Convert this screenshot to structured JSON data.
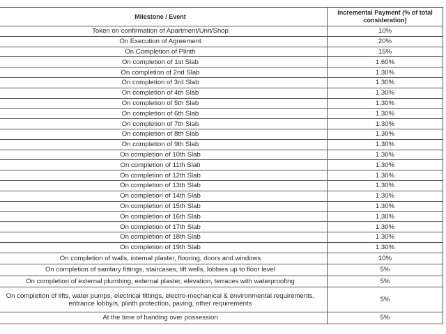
{
  "headers": {
    "milestone": "Milestone / Event",
    "payment_line1": "Incremental Payment (% of total",
    "payment_line2": "consideration)"
  },
  "rows": [
    {
      "milestone": "Token on confirmation of Apartment/Unit/Shop",
      "payment": "10%"
    },
    {
      "milestone": "On Execution of Agreement",
      "payment": "20%"
    },
    {
      "milestone": "On Completion of Plinth",
      "payment": "15%"
    },
    {
      "milestone": "On completion of 1st Slab",
      "payment": "1.60%"
    },
    {
      "milestone": "On completion of 2nd Slab",
      "payment": "1.30%"
    },
    {
      "milestone": "On completion of 3rd Slab",
      "payment": "1.30%"
    },
    {
      "milestone": "On completion of 4th Slab",
      "payment": "1.30%"
    },
    {
      "milestone": "On completion of 5th Slab",
      "payment": "1.30%"
    },
    {
      "milestone": "On completion of 6th Slab",
      "payment": "1.30%"
    },
    {
      "milestone": "On completion of 7th Slab",
      "payment": "1.30%"
    },
    {
      "milestone": "On completion of 8th Slab",
      "payment": "1.30%"
    },
    {
      "milestone": "On completion of 9th Slab",
      "payment": "1.30%"
    },
    {
      "milestone": "On completion of 10th Slab",
      "payment": "1.30%"
    },
    {
      "milestone": "On completion of 11th Slab",
      "payment": "1.30%"
    },
    {
      "milestone": "On completion of 12th Slab",
      "payment": "1.30%"
    },
    {
      "milestone": "On completion of 13th Slab",
      "payment": "1.30%"
    },
    {
      "milestone": "On completion of 14th Slab",
      "payment": "1.30%"
    },
    {
      "milestone": "On completion of 15th Slab",
      "payment": "1.30%"
    },
    {
      "milestone": "On completion of 16th Slab",
      "payment": "1.30%"
    },
    {
      "milestone": "On completion of 17th Slab",
      "payment": "1.30%"
    },
    {
      "milestone": "On completion of 18th Slab",
      "payment": "1.30%"
    },
    {
      "milestone": "On completion of 19th Slab",
      "payment": "1.30%"
    },
    {
      "milestone": "On completion of walls, internal plaster, flooring, doors and windows",
      "payment": "10%"
    },
    {
      "milestone": "On completion of sanitary fittings, staircases, lift wells, lobbies up to floor level",
      "payment": "5%"
    },
    {
      "milestone": "On completion of external plumbing, external plaster, elevation, terraces with waterproofing",
      "payment": "5%"
    },
    {
      "milestone": "On completion of lifts, water pumps, electrical fittings, electro-mechanical & environmental requirements,",
      "milestone_line2": "entrance lobby/s, plinth protection, paving, other requirements",
      "payment": "5%"
    },
    {
      "milestone": "At the time of handing over possession",
      "payment": "5%"
    }
  ]
}
